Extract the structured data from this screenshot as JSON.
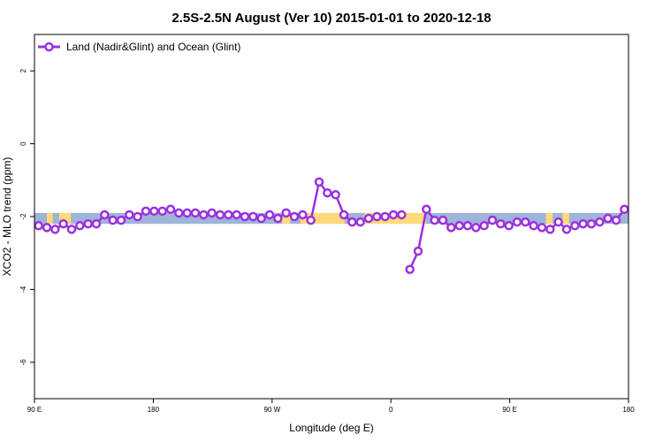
{
  "chart_data": {
    "type": "line",
    "title": "2.5S-2.5N August (Ver 10)   2015-01-01 to 2020-12-18",
    "xlabel": "Longitude (deg E)",
    "ylabel": "XCO2 - MLO trend (ppm)",
    "xlim": [
      90,
      450
    ],
    "ylim": [
      -7,
      3
    ],
    "x_ticks": [
      {
        "value": 90,
        "label": "90 E"
      },
      {
        "value": 162,
        "label": "180"
      },
      {
        "value": 234,
        "label": "90 W"
      },
      {
        "value": 306,
        "label": "0"
      },
      {
        "value": 378,
        "label": "90 E"
      },
      {
        "value": 450,
        "label": "180"
      }
    ],
    "y_ticks": [
      {
        "value": 2,
        "label": "2"
      },
      {
        "value": 0,
        "label": "0"
      },
      {
        "value": -2,
        "label": "-2"
      },
      {
        "value": -4,
        "label": "-4"
      },
      {
        "value": -6,
        "label": "-6"
      }
    ],
    "legend": {
      "position": "top-left"
    },
    "colors": {
      "line": "#9b30e0",
      "land": "#9fb4d9",
      "ocean": "#ffd97a"
    },
    "background_band": {
      "y_range": [
        -2.2,
        -1.9
      ]
    },
    "surface_segments": [
      {
        "x": [
          90,
          97.5
        ],
        "type": "land"
      },
      {
        "x": [
          97.5,
          101
        ],
        "type": "ocean"
      },
      {
        "x": [
          101,
          105
        ],
        "type": "land"
      },
      {
        "x": [
          105,
          112
        ],
        "type": "ocean"
      },
      {
        "x": [
          112,
          240
        ],
        "type": "land"
      },
      {
        "x": [
          240,
          245
        ],
        "type": "ocean"
      },
      {
        "x": [
          245,
          251
        ],
        "type": "land"
      },
      {
        "x": [
          251,
          278
        ],
        "type": "ocean"
      },
      {
        "x": [
          278,
          290
        ],
        "type": "land"
      },
      {
        "x": [
          290,
          327
        ],
        "type": "ocean"
      },
      {
        "x": [
          327,
          338
        ],
        "type": "land"
      },
      {
        "x": [
          338,
          400
        ],
        "type": "land"
      },
      {
        "x": [
          400,
          404
        ],
        "type": "ocean"
      },
      {
        "x": [
          404,
          410
        ],
        "type": "land"
      },
      {
        "x": [
          410,
          414
        ],
        "type": "ocean"
      },
      {
        "x": [
          414,
          450
        ],
        "type": "land"
      }
    ],
    "series": [
      {
        "name": "Land (Nadir&Glint) and Ocean (Glint)",
        "segments": [
          {
            "x": [
              92.5,
              97.5,
              102.5,
              107.5,
              112.5,
              117.5,
              122.5,
              127.5,
              132.5,
              137.5,
              142.5,
              147.5,
              152.5,
              157.5,
              162.5,
              167.5,
              172.5,
              177.5,
              182.5,
              187.5,
              192.5,
              197.5,
              202.5,
              207.5,
              212.5,
              217.5,
              222.5,
              227.5,
              232.5,
              237.5,
              242.5,
              247.5,
              252.5,
              257.5,
              262.5,
              267.5,
              272.5,
              277.5,
              282.5,
              287.5,
              292.5,
              297.5,
              302.5,
              307.5,
              312.5
            ],
            "y": [
              -2.25,
              -2.3,
              -2.35,
              -2.2,
              -2.35,
              -2.25,
              -2.2,
              -2.2,
              -1.95,
              -2.1,
              -2.1,
              -1.95,
              -2.0,
              -1.85,
              -1.85,
              -1.85,
              -1.8,
              -1.9,
              -1.9,
              -1.9,
              -1.95,
              -1.9,
              -1.95,
              -1.95,
              -1.95,
              -2.0,
              -2.0,
              -2.05,
              -1.95,
              -2.05,
              -1.9,
              -2.0,
              -1.95,
              -2.1,
              -1.05,
              -1.35,
              -1.4,
              -1.95,
              -2.15,
              -2.15,
              -2.05,
              -2.0,
              -2.0,
              -1.95,
              -1.95
            ]
          },
          {
            "x": [
              317.5,
              322.5,
              327.5,
              332.5,
              337.5,
              342.5,
              347.5,
              352.5,
              357.5,
              362.5,
              367.5,
              372.5,
              377.5,
              382.5,
              387.5,
              392.5,
              397.5,
              402.5,
              407.5,
              412.5,
              417.5,
              422.5,
              427.5,
              432.5,
              437.5,
              442.5,
              447.5
            ],
            "y": [
              -3.45,
              -2.95,
              -1.8,
              -2.1,
              -2.1,
              -2.3,
              -2.25,
              -2.25,
              -2.3,
              -2.25,
              -2.1,
              -2.2,
              -2.25,
              -2.15,
              -2.15,
              -2.25,
              -2.3,
              -2.35,
              -2.15,
              -2.35,
              -2.25,
              -2.2,
              -2.2,
              -2.15,
              -2.05,
              -2.1,
              -1.8
            ]
          }
        ]
      }
    ]
  }
}
